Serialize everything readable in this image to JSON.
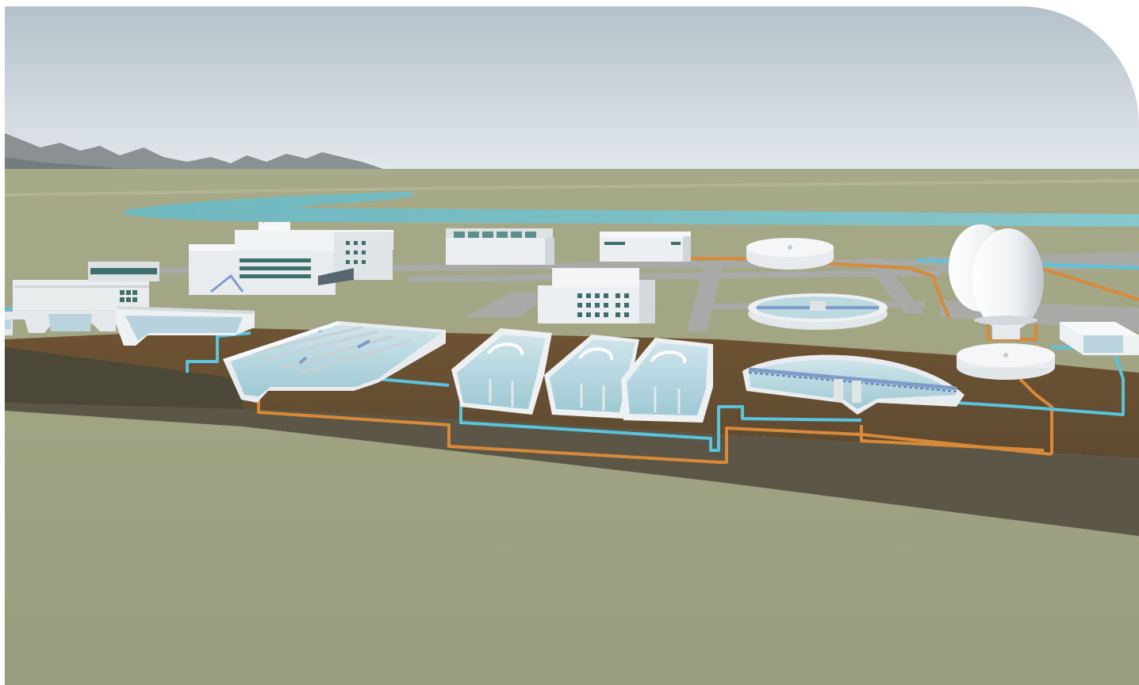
{
  "scene": {
    "kind": "wastewater-treatment-plant-cutaway",
    "colors": {
      "sky_top": "#b9c5ce",
      "sky_bottom": "#dfe6ea",
      "ground": "#9b9f80",
      "ground_far": "#a3a684",
      "soil_cut": "#5a5544",
      "soil_dark": "#3f3b30",
      "trench": "#6f5435",
      "road": "#a7a9a6",
      "water": "#7fc4c9",
      "water_deep": "#5aa9b3",
      "concrete": "#eef1f2",
      "concrete_shadow": "#c9cfd3",
      "pipe_water": "#5cc3dd",
      "pipe_sludge": "#d88a3a",
      "window": "#3f6f6c",
      "bridge": "#7f9cc8",
      "mountains": "#8b9093"
    },
    "components": [
      {
        "id": "inlet-works",
        "icon": "inlet-icon"
      },
      {
        "id": "grit-chamber",
        "icon": "tank-icon"
      },
      {
        "id": "primary-sedimentation",
        "icon": "tank-icon"
      },
      {
        "id": "aeration-basins",
        "count": 3,
        "icon": "basin-icon"
      },
      {
        "id": "secondary-clarifier",
        "icon": "clarifier-icon"
      },
      {
        "id": "round-thickeners",
        "count": 3,
        "icon": "thickener-icon"
      },
      {
        "id": "egg-digesters",
        "count": 2,
        "icon": "digester-icon"
      },
      {
        "id": "office-buildings",
        "count": 4,
        "icon": "building-icon"
      },
      {
        "id": "outfall-structure",
        "icon": "outfall-icon"
      },
      {
        "id": "river",
        "icon": "river-icon"
      }
    ]
  }
}
